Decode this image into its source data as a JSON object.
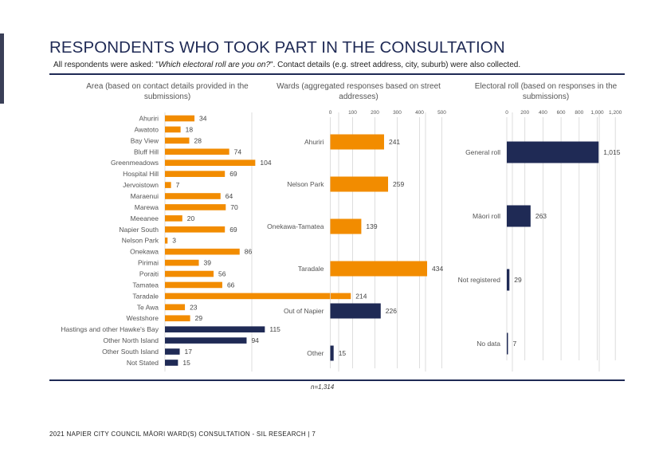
{
  "colors": {
    "navy": "#1F2A55",
    "orange": "#F28C00",
    "title": "#1F2A55",
    "rule": "#1F2A55",
    "accent_bar": "#3A3F57",
    "grid": "#D6D6D6",
    "label": "#555555"
  },
  "header": {
    "title": "RESPONDENTS WHO TOOK PART IN THE CONSULTATION",
    "subtitle_pre": "All respondents were asked: \"",
    "subtitle_question": "Which electoral roll are you on?",
    "subtitle_post": "\". Contact details (e.g. street address, city, suburb) were also collected."
  },
  "note": "n=1,314",
  "footer": "2021 NAPIER CITY COUNCIL MĀORI WARD(S) CONSULTATION - SIL RESEARCH | 7",
  "chart_data": [
    {
      "type": "bar",
      "orientation": "horizontal",
      "title": "Area (based on contact details provided in the submissions)",
      "xlim": [
        0,
        500
      ],
      "grid": true,
      "categories": [
        "Ahuriri",
        "Awatoto",
        "Bay View",
        "Bluff Hill",
        "Greenmeadows",
        "Hospital Hill",
        "Jervoistown",
        "Maraenui",
        "Marewa",
        "Meeanee",
        "Napier South",
        "Nelson Park",
        "Onekawa",
        "Pirimai",
        "Poraiti",
        "Tamatea",
        "Taradale",
        "Te Awa",
        "Westshore",
        "Hastings and other Hawke's Bay",
        "Other North Island",
        "Other South Island",
        "Not Stated"
      ],
      "values": [
        34,
        18,
        28,
        74,
        104,
        69,
        7,
        64,
        70,
        20,
        69,
        3,
        86,
        39,
        56,
        66,
        214,
        23,
        29,
        115,
        94,
        17,
        15
      ],
      "colors": [
        "orange",
        "orange",
        "orange",
        "orange",
        "orange",
        "orange",
        "orange",
        "orange",
        "orange",
        "orange",
        "orange",
        "orange",
        "orange",
        "orange",
        "orange",
        "orange",
        "orange",
        "orange",
        "orange",
        "navy",
        "navy",
        "navy",
        "navy"
      ]
    },
    {
      "type": "bar",
      "orientation": "horizontal",
      "title": "Wards (aggregated responses based on street addresses)",
      "xlim": [
        0,
        500
      ],
      "xticks": [
        0,
        100,
        200,
        300,
        400,
        500
      ],
      "grid": true,
      "categories": [
        "Ahuriri",
        "Nelson Park",
        "Onekawa-Tamatea",
        "Taradale",
        "Out of Napier",
        "Other"
      ],
      "values": [
        241,
        259,
        139,
        434,
        226,
        15
      ],
      "colors": [
        "orange",
        "orange",
        "orange",
        "orange",
        "navy",
        "navy"
      ]
    },
    {
      "type": "bar",
      "orientation": "horizontal",
      "title": "Electoral roll (based on responses in the submissions)",
      "xlim": [
        0,
        1200
      ],
      "xticks": [
        0,
        200,
        400,
        600,
        800,
        "1,000",
        "1,200"
      ],
      "grid": true,
      "categories": [
        "General roll",
        "Māori roll",
        "Not registered",
        "No data"
      ],
      "values": [
        1015,
        263,
        29,
        7
      ],
      "value_labels": [
        "1,015",
        "263",
        "29",
        "7"
      ],
      "colors": [
        "navy",
        "navy",
        "navy",
        "navy"
      ]
    }
  ]
}
